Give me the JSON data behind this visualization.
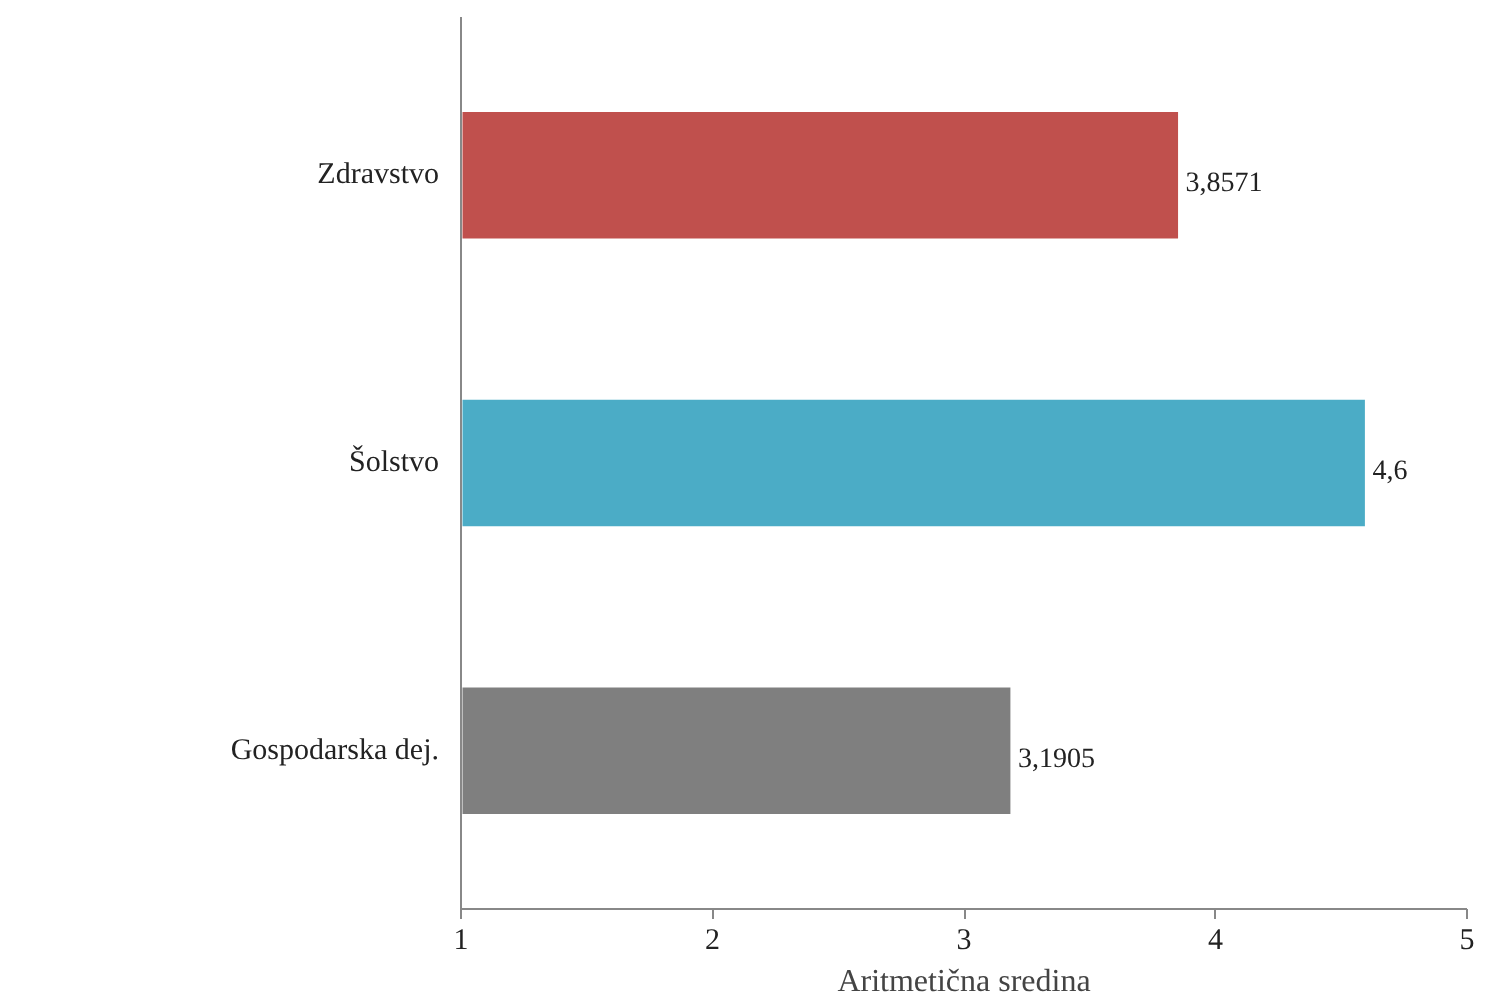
{
  "chart_data": {
    "type": "bar",
    "orientation": "horizontal",
    "xlabel": "Aritmetična sredina",
    "categories": [
      "Zdravstvo",
      "Šolstvo",
      "Gospodarska dej."
    ],
    "values": [
      3.8571,
      4.6,
      3.1905
    ],
    "colors": [
      "#c0504d",
      "#4bacc6",
      "#7f7f7f"
    ],
    "value_labels": [
      "3,8571",
      "4,6",
      "3,1905"
    ],
    "xlim": [
      1,
      5
    ],
    "xticks": [
      1,
      2,
      3,
      4,
      5
    ],
    "grid": false
  }
}
